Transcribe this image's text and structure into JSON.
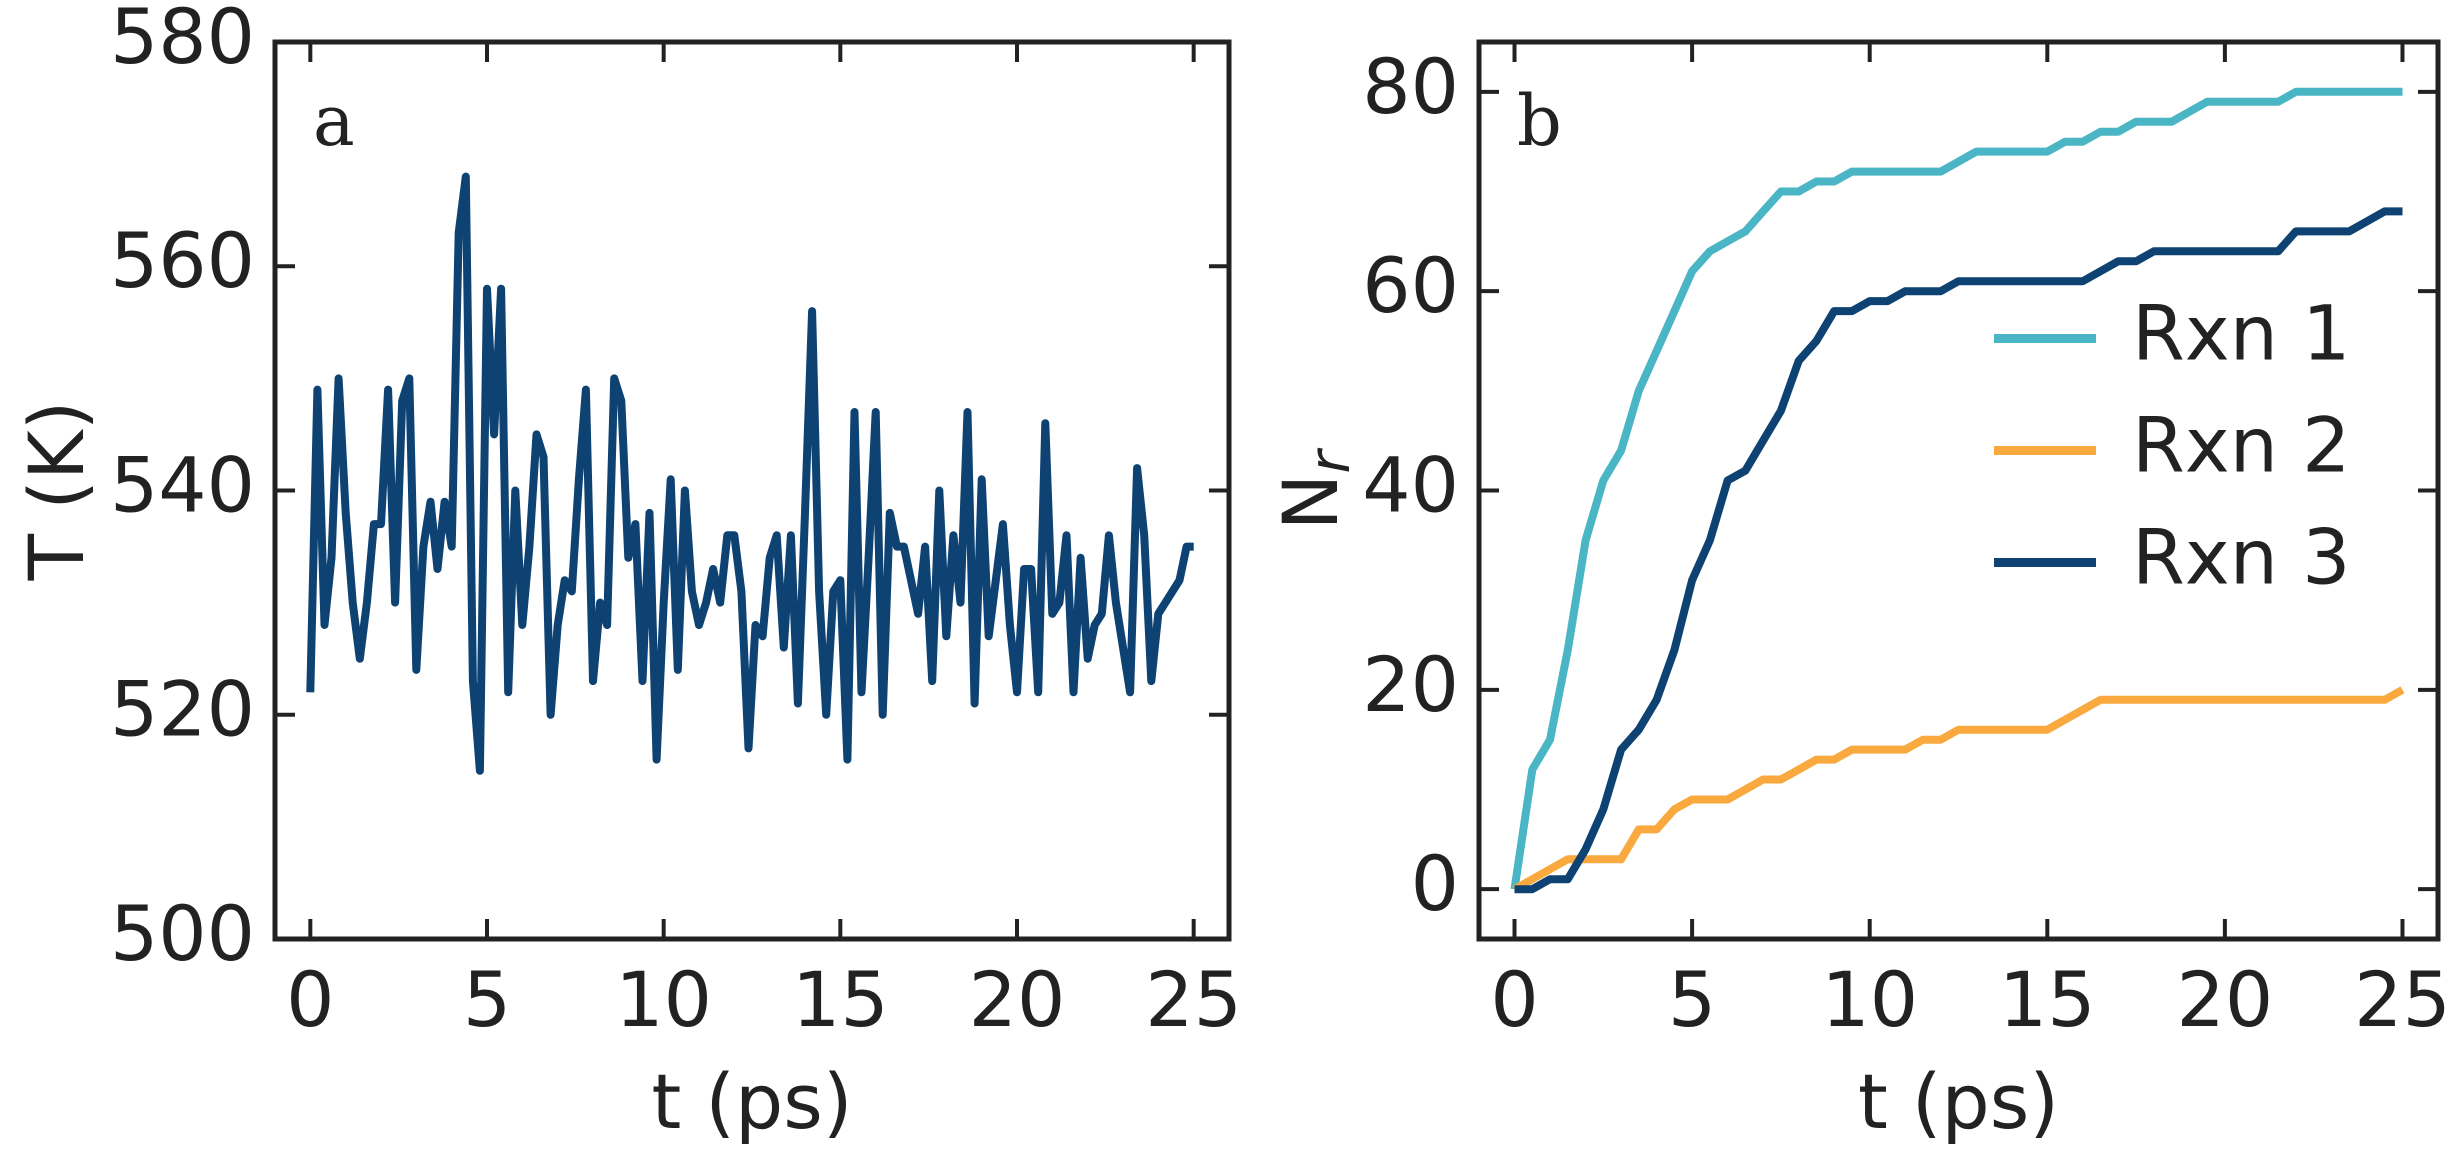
{
  "chart_data": [
    {
      "type": "line",
      "annotation": "a",
      "xlabel": "t (ps)",
      "ylabel": "T (K)",
      "color": "#0d4272",
      "xlim": [
        -1,
        26
      ],
      "xticks": [
        0,
        5,
        10,
        15,
        20,
        25
      ],
      "ylim": [
        500,
        580
      ],
      "yticks": [
        500,
        520,
        540,
        560,
        580
      ],
      "x": [
        0,
        0.2,
        0.4,
        0.6,
        0.8,
        1,
        1.2,
        1.4,
        1.6,
        1.8,
        2,
        2.2,
        2.4,
        2.6,
        2.8,
        3,
        3.2,
        3.4,
        3.6,
        3.8,
        4,
        4.2,
        4.4,
        4.6,
        4.8,
        5,
        5.2,
        5.4,
        5.6,
        5.8,
        6,
        6.2,
        6.4,
        6.6,
        6.8,
        7,
        7.2,
        7.4,
        7.6,
        7.8,
        8,
        8.2,
        8.4,
        8.6,
        8.8,
        9,
        9.2,
        9.4,
        9.6,
        9.8,
        10,
        10.2,
        10.4,
        10.6,
        10.8,
        11,
        11.2,
        11.4,
        11.6,
        11.8,
        12,
        12.2,
        12.4,
        12.6,
        12.8,
        13,
        13.2,
        13.4,
        13.6,
        13.8,
        14,
        14.2,
        14.4,
        14.6,
        14.8,
        15,
        15.2,
        15.4,
        15.6,
        15.8,
        16,
        16.2,
        16.4,
        16.6,
        16.8,
        17,
        17.2,
        17.4,
        17.6,
        17.8,
        18,
        18.2,
        18.4,
        18.6,
        18.8,
        19,
        19.2,
        19.4,
        19.6,
        19.8,
        20,
        20.2,
        20.4,
        20.6,
        20.8,
        21,
        21.2,
        21.4,
        21.6,
        21.8,
        22,
        22.2,
        22.4,
        22.6,
        22.8,
        23,
        23.2,
        23.4,
        23.6,
        23.8,
        24,
        24.2,
        24.4,
        24.6,
        24.8,
        25
      ],
      "values": [
        522,
        549,
        528,
        534,
        550,
        538,
        530,
        525,
        530,
        537,
        537,
        549,
        530,
        548,
        550,
        524,
        535,
        539,
        533,
        539,
        535,
        563,
        568,
        523,
        515,
        558,
        545,
        558,
        522,
        540,
        528,
        535,
        545,
        543,
        520,
        528,
        532,
        531,
        541,
        549,
        523,
        530,
        528,
        550,
        548,
        534,
        537,
        523,
        538,
        516,
        530,
        541,
        524,
        540,
        531,
        528,
        530,
        533,
        530,
        536,
        536,
        531,
        517,
        528,
        527,
        534,
        536,
        526,
        536,
        521,
        538,
        556,
        531,
        520,
        531,
        532,
        516,
        547,
        522,
        534,
        547,
        520,
        538,
        535,
        535,
        532,
        529,
        535,
        523,
        540,
        527,
        536,
        530,
        547,
        521,
        541,
        527,
        532,
        537,
        528,
        522,
        533,
        533,
        522,
        546,
        529,
        530,
        536,
        522,
        534,
        525,
        528,
        529,
        536,
        530,
        526,
        522,
        542,
        536,
        523,
        529,
        530,
        531,
        532,
        535,
        535
      ]
    },
    {
      "type": "line",
      "annotation": "b",
      "xlabel": "t (ps)",
      "ylabel": "N",
      "ylabel_subscript": "r",
      "legend": "center right",
      "xlim": [
        -1,
        26
      ],
      "xticks": [
        0,
        5,
        10,
        15,
        20,
        25
      ],
      "ylim": [
        -5,
        85
      ],
      "yticks": [
        0,
        20,
        40,
        60,
        80
      ],
      "x": [
        0,
        0.5,
        1,
        1.5,
        2,
        2.5,
        3,
        3.5,
        4,
        4.5,
        5,
        5.5,
        6,
        6.5,
        7,
        7.5,
        8,
        8.5,
        9,
        9.5,
        10,
        10.5,
        11,
        11.5,
        12,
        12.5,
        13,
        13.5,
        14,
        14.5,
        15,
        15.5,
        16,
        16.5,
        17,
        17.5,
        18,
        18.5,
        19,
        19.5,
        20,
        20.5,
        21,
        21.5,
        22,
        22.5,
        23,
        23.5,
        24,
        24.5,
        25
      ],
      "series": [
        {
          "name": "Rxn 1",
          "color": "#4ab5c4",
          "values": [
            0,
            12,
            15,
            24,
            35,
            41,
            44,
            50,
            54,
            58,
            62,
            64,
            65,
            66,
            68,
            70,
            70,
            71,
            71,
            72,
            72,
            72,
            72,
            72,
            72,
            73,
            74,
            74,
            74,
            74,
            74,
            75,
            75,
            76,
            76,
            77,
            77,
            77,
            78,
            79,
            79,
            79,
            79,
            79,
            80,
            80,
            80,
            80,
            80,
            80,
            80
          ]
        },
        {
          "name": "Rxn 2",
          "color": "#f9a93e",
          "values": [
            0,
            1,
            2,
            3,
            3,
            3,
            3,
            6,
            6,
            8,
            9,
            9,
            9,
            10,
            11,
            11,
            12,
            13,
            13,
            14,
            14,
            14,
            14,
            15,
            15,
            16,
            16,
            16,
            16,
            16,
            16,
            17,
            18,
            19,
            19,
            19,
            19,
            19,
            19,
            19,
            19,
            19,
            19,
            19,
            19,
            19,
            19,
            19,
            19,
            19,
            20
          ]
        },
        {
          "name": "Rxn 3",
          "color": "#0d4272",
          "values": [
            0,
            0,
            1,
            1,
            4,
            8,
            14,
            16,
            19,
            24,
            31,
            35,
            41,
            42,
            45,
            48,
            53,
            55,
            58,
            58,
            59,
            59,
            60,
            60,
            60,
            61,
            61,
            61,
            61,
            61,
            61,
            61,
            61,
            62,
            63,
            63,
            64,
            64,
            64,
            64,
            64,
            64,
            64,
            64,
            66,
            66,
            66,
            66,
            67,
            68,
            68
          ]
        }
      ]
    }
  ]
}
